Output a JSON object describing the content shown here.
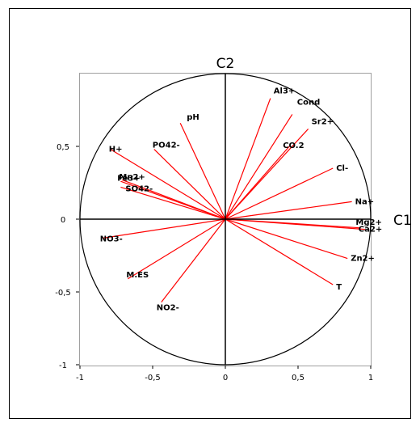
{
  "chart_data": {
    "type": "scatter",
    "subtype": "correlation-circle",
    "title": "",
    "xlabel": "C1",
    "ylabel": "C2",
    "xlim": [
      -1,
      1
    ],
    "ylim": [
      -1,
      1
    ],
    "grid": false,
    "x_ticks": [
      "-1",
      "-0,5",
      "0",
      "0,5",
      "1"
    ],
    "y_ticks": [
      "-1",
      "-0,5",
      "0",
      "0,5"
    ],
    "x_tick_values": [
      -1,
      -0.5,
      0,
      0.5,
      1
    ],
    "y_tick_values": [
      -1,
      -0.5,
      0,
      0.5
    ],
    "line_color": "#ff0000",
    "circle_color": "#000000",
    "variables": [
      {
        "label": "Al3+",
        "x": 0.31,
        "y": 0.83
      },
      {
        "label": "Cond",
        "x": 0.46,
        "y": 0.72
      },
      {
        "label": "Sr2+",
        "x": 0.57,
        "y": 0.62
      },
      {
        "label": "CO.2",
        "x": 0.44,
        "y": 0.5
      },
      {
        "label": "Cl-",
        "x": 0.74,
        "y": 0.35
      },
      {
        "label": "Na+",
        "x": 0.87,
        "y": 0.12
      },
      {
        "label": "Mg2+",
        "x": 0.93,
        "y": -0.06
      },
      {
        "label": "Ca2+",
        "x": 0.96,
        "y": -0.07
      },
      {
        "label": "Zn2+",
        "x": 0.84,
        "y": -0.27
      },
      {
        "label": "T",
        "x": 0.74,
        "y": -0.45
      },
      {
        "label": "pH",
        "x": -0.31,
        "y": 0.66
      },
      {
        "label": "PO42-",
        "x": -0.49,
        "y": 0.48
      },
      {
        "label": "H+",
        "x": -0.79,
        "y": 0.48
      },
      {
        "label": "Fe3+",
        "x": -0.71,
        "y": 0.27
      },
      {
        "label": "Mn2+",
        "x": -0.72,
        "y": 0.26
      },
      {
        "label": "SO42-",
        "x": -0.72,
        "y": 0.22
      },
      {
        "label": "NO3-",
        "x": -0.84,
        "y": -0.13
      },
      {
        "label": "M.ES",
        "x": -0.67,
        "y": -0.41
      },
      {
        "label": "NO2-",
        "x": -0.44,
        "y": -0.57
      }
    ]
  }
}
